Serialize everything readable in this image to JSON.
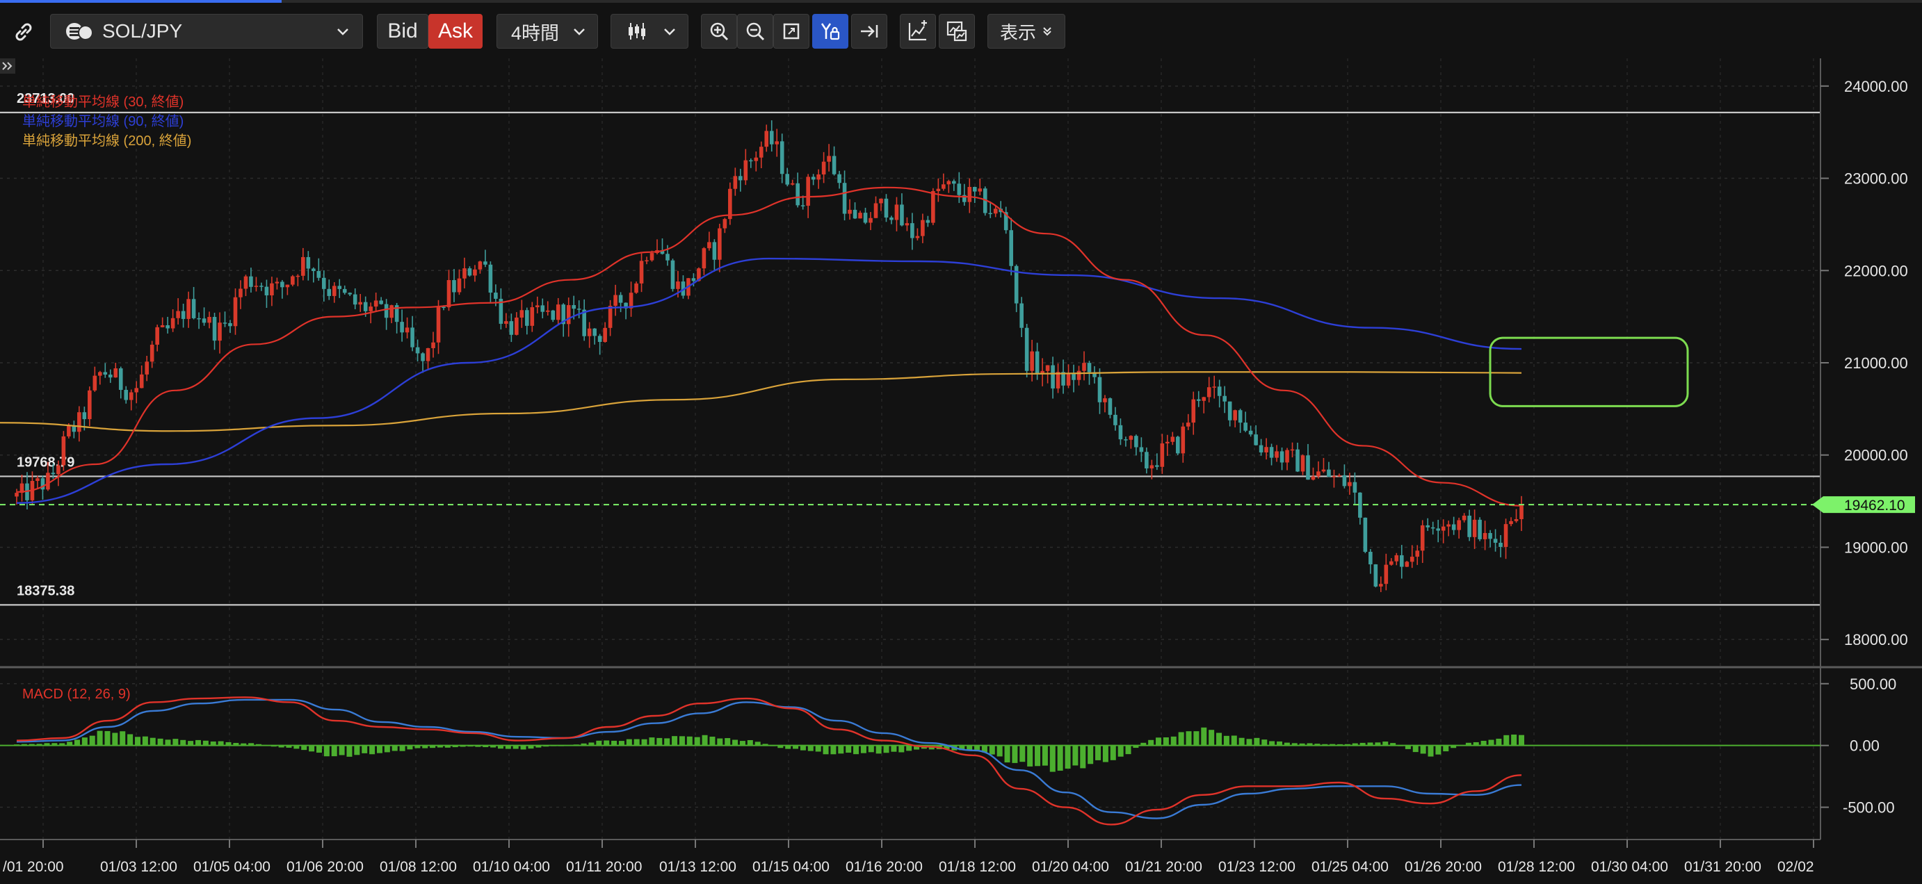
{
  "toolbar": {
    "symbol": "SOL/JPY",
    "bid_label": "Bid",
    "ask_label": "Ask",
    "timeframe": "4時間",
    "display_label": "表示"
  },
  "colors": {
    "background": "#121212",
    "bullish": "#d93a2b",
    "bearish": "#3f9e9c",
    "sma30": "#e0332a",
    "sma90": "#2d3fd6",
    "sma200": "#d9a33a",
    "macd_line": "#e0332a",
    "signal_line": "#3a7bd5",
    "histogram": "#4caf2f",
    "price_marker": "#7df26a",
    "annotation_box": "#7ddc50"
  },
  "chart_data": {
    "type": "candlestick",
    "symbol": "SOL/JPY",
    "ylim": [
      17700,
      24300
    ],
    "y_ticks": [
      "24000.00",
      "23000.00",
      "22000.00",
      "21000.00",
      "20000.00",
      "19000.00",
      "18000.00"
    ],
    "y_tick_values": [
      24000,
      23000,
      22000,
      21000,
      20000,
      19000,
      18000
    ],
    "x_ticks": [
      "/01 20:00",
      "01/03 12:00",
      "01/05 04:00",
      "01/06 20:00",
      "01/08 12:00",
      "01/10 04:00",
      "01/11 20:00",
      "01/13 12:00",
      "01/15 04:00",
      "01/16 20:00",
      "01/18 12:00",
      "01/20 04:00",
      "01/21 20:00",
      "01/23 12:00",
      "01/25 04:00",
      "01/26 20:00",
      "01/28 12:00",
      "01/30 04:00",
      "01/31 20:00",
      "02/02"
    ],
    "horizontal_levels": [
      {
        "label": "23713.00",
        "value": 23713
      },
      {
        "label": "19768.79",
        "value": 19768.79
      },
      {
        "label": "18375.38",
        "value": 18375.38
      }
    ],
    "current_price": {
      "label": "19462.10",
      "value": 19462.1
    },
    "legend": [
      {
        "label": "単純移動平均線 (30, 終値)",
        "color": "#e0332a"
      },
      {
        "label": "単純移動平均線 (90, 終値)",
        "color": "#2d3fd6"
      },
      {
        "label": "単純移動平均線 (200, 終値)",
        "color": "#d9a33a"
      }
    ],
    "price_path": [
      19550,
      19700,
      20300,
      20900,
      20700,
      21300,
      21600,
      21350,
      21900,
      21800,
      22100,
      21750,
      21600,
      21500,
      21000,
      21800,
      22100,
      21400,
      21500,
      21550,
      21300,
      21700,
      22300,
      21800,
      22200,
      23100,
      23400,
      22800,
      23200,
      22500,
      22700,
      22400,
      22900,
      22800,
      22600,
      21000,
      20800,
      20900,
      20300,
      19900,
      20100,
      20700,
      20500,
      20100,
      19950,
      19800,
      19700,
      18700,
      18900,
      19300,
      19250,
      19050,
      19460
    ],
    "sma30_path": [
      19600,
      19900,
      20700,
      21200,
      21500,
      21600,
      21650,
      21900,
      22200,
      22600,
      22800,
      22900,
      22800,
      22400,
      21900,
      21300,
      20700,
      20100,
      19700,
      19450
    ],
    "sma90_path": [
      19480,
      19900,
      20400,
      21000,
      21600,
      22130,
      22100,
      21950,
      21700,
      21380,
      21150
    ],
    "sma200_path": [
      20350,
      20260,
      20320,
      20450,
      20600,
      20820,
      20880,
      20900,
      20900,
      20890
    ],
    "annotation": {
      "type": "rectangle",
      "price_range": [
        20530,
        21270
      ]
    },
    "macd": {
      "label": "MACD (12, 26, 9)",
      "ylim": [
        -750,
        600
      ],
      "y_ticks": [
        "500.00",
        "0.00",
        "-500.00"
      ],
      "y_tick_values": [
        500,
        0,
        -500
      ],
      "macd_line": [
        40,
        60,
        200,
        350,
        380,
        390,
        350,
        200,
        150,
        130,
        100,
        40,
        60,
        150,
        240,
        340,
        380,
        300,
        130,
        40,
        -10,
        -80,
        -350,
        -500,
        -640,
        -520,
        -400,
        -330,
        -330,
        -300,
        -430,
        -470,
        -370,
        -240
      ],
      "signal_line": [
        30,
        40,
        150,
        280,
        340,
        370,
        370,
        290,
        190,
        150,
        110,
        70,
        60,
        110,
        180,
        260,
        350,
        310,
        200,
        100,
        20,
        -40,
        -200,
        -380,
        -540,
        -590,
        -480,
        -390,
        -350,
        -330,
        -330,
        -390,
        -400,
        -320
      ],
      "histogram": [
        10,
        20,
        120,
        60,
        40,
        20,
        -20,
        -90,
        -60,
        -20,
        -10,
        -30,
        0,
        40,
        60,
        80,
        40,
        -30,
        -70,
        -60,
        -30,
        -40,
        -150,
        -200,
        -120,
        60,
        130,
        60,
        20,
        10,
        30,
        -80,
        30,
        90
      ]
    }
  }
}
